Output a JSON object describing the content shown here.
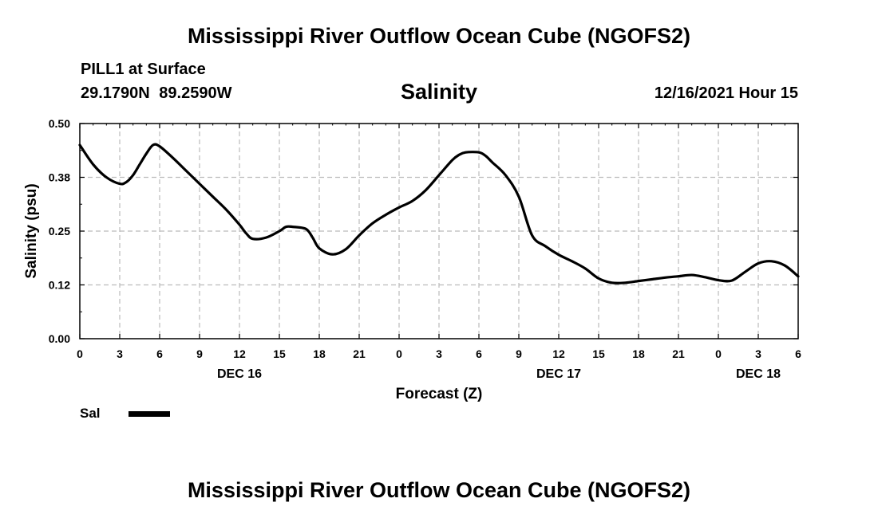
{
  "header": {
    "title": "Mississippi River Outflow Ocean Cube (NGOFS2)",
    "station": "PILL1 at Surface",
    "coordinates": "29.1790N 89.2590W",
    "variable": "Salinity",
    "datetime": "12/16/2021 Hour 15"
  },
  "footer": {
    "title": "Mississippi River Outflow Ocean Cube (NGOFS2)"
  },
  "legend": {
    "label": "Sal",
    "color": "#000000"
  },
  "chart_data": {
    "type": "line",
    "title": "Salinity",
    "xlabel": "Forecast (Z)",
    "ylabel": "Salinity (psu)",
    "xlim": [
      0,
      54
    ],
    "ylim": [
      0.0,
      0.5
    ],
    "grid": true,
    "x_ticks": [
      0,
      3,
      6,
      9,
      12,
      15,
      18,
      21,
      24,
      27,
      30,
      33,
      36,
      39,
      42,
      45,
      48,
      51,
      54
    ],
    "x_tick_labels": [
      "0",
      "3",
      "6",
      "9",
      "12",
      "15",
      "18",
      "21",
      "0",
      "3",
      "6",
      "9",
      "12",
      "15",
      "18",
      "21",
      "0",
      "3",
      "6"
    ],
    "y_ticks": [
      0.0,
      0.125,
      0.25,
      0.375,
      0.5
    ],
    "y_tick_labels": [
      "0.00",
      "0.12",
      "0.25",
      "0.38",
      "0.50"
    ],
    "date_labels": [
      {
        "x": 12,
        "label": "DEC 16"
      },
      {
        "x": 36,
        "label": "DEC 17"
      },
      {
        "x": 51,
        "label": "DEC 18"
      }
    ],
    "series": [
      {
        "name": "Sal",
        "color": "#000000",
        "x": [
          0,
          1,
          2,
          3,
          3.5,
          4,
          4.5,
          5,
          5.5,
          6,
          7,
          8,
          9,
          10,
          11,
          12,
          12.5,
          13,
          14,
          15,
          15.5,
          16,
          17,
          17.5,
          18,
          19,
          20,
          21,
          22,
          23,
          24,
          25,
          26,
          27,
          28,
          28.5,
          29,
          30,
          30.5,
          31,
          32,
          33,
          34,
          35,
          36,
          37,
          38,
          39,
          40,
          41,
          42,
          43,
          44,
          45,
          46,
          47,
          48,
          49,
          50,
          51,
          52,
          53,
          54
        ],
        "y": [
          0.45,
          0.405,
          0.375,
          0.36,
          0.364,
          0.38,
          0.405,
          0.43,
          0.45,
          0.447,
          0.42,
          0.39,
          0.36,
          0.33,
          0.3,
          0.265,
          0.245,
          0.232,
          0.235,
          0.25,
          0.26,
          0.26,
          0.255,
          0.235,
          0.21,
          0.196,
          0.208,
          0.24,
          0.268,
          0.288,
          0.305,
          0.32,
          0.345,
          0.38,
          0.415,
          0.427,
          0.433,
          0.433,
          0.425,
          0.41,
          0.38,
          0.33,
          0.24,
          0.215,
          0.195,
          0.18,
          0.163,
          0.14,
          0.13,
          0.13,
          0.134,
          0.138,
          0.142,
          0.145,
          0.148,
          0.143,
          0.136,
          0.135,
          0.155,
          0.175,
          0.18,
          0.17,
          0.145
        ]
      }
    ]
  }
}
